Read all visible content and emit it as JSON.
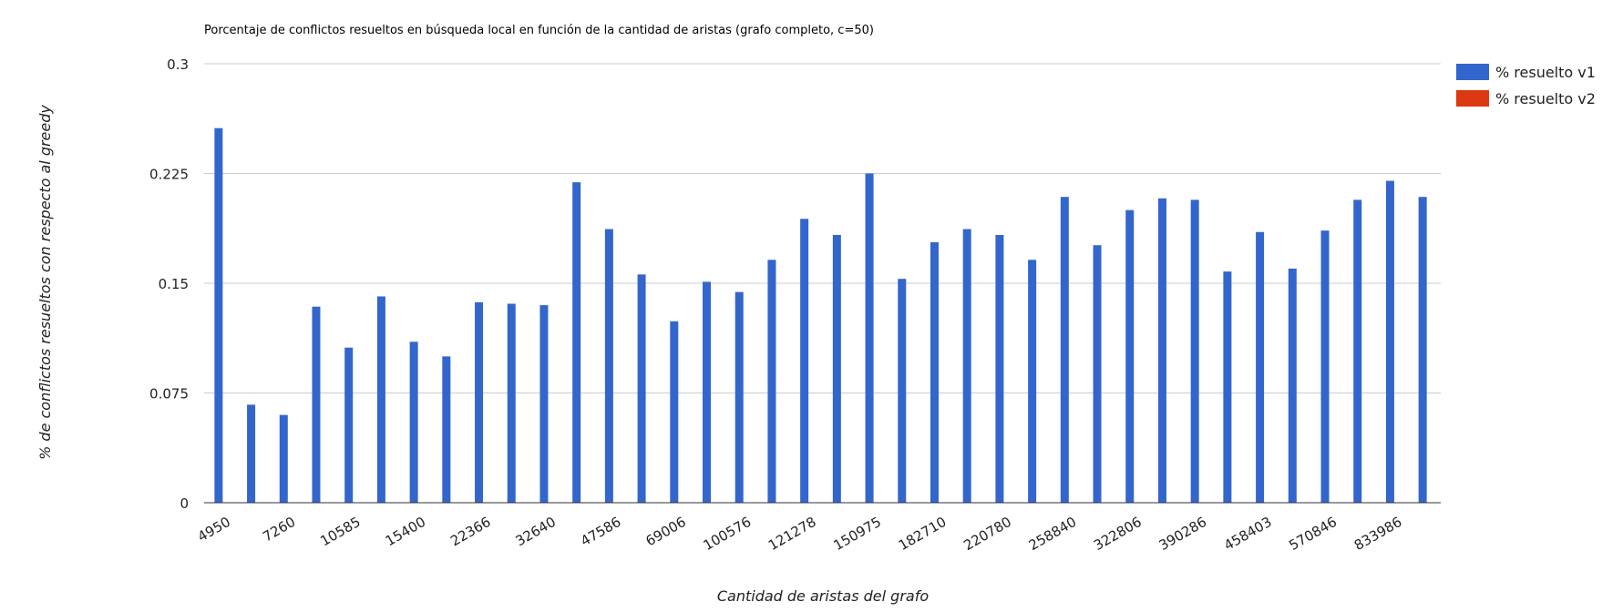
{
  "chart_data": {
    "type": "bar",
    "title": "Porcentaje de conflictos resueltos en búsqueda local en función de la cantidad de aristas (grafo completo, c=50)",
    "xlabel": "Cantidad de aristas del grafo",
    "ylabel": "% de conflictos resueltos con respecto al greedy",
    "ylim": [
      0,
      0.3
    ],
    "yticks": [
      "0",
      "0.075",
      "0.15",
      "0.225",
      "0.3"
    ],
    "grid": true,
    "legend_position": "right",
    "xtick_labels": [
      "4950",
      "7260",
      "10585",
      "15400",
      "22366",
      "32640",
      "47586",
      "69006",
      "100576",
      "121278",
      "150975",
      "182710",
      "220780",
      "258840",
      "322806",
      "390286",
      "458403",
      "570846",
      "833986"
    ],
    "bar_count": 38,
    "series": [
      {
        "name": "% resuelto v1",
        "color": "#3366cc",
        "values": [
          0.256,
          0.067,
          0.06,
          0.134,
          0.106,
          0.141,
          0.11,
          0.1,
          0.137,
          0.136,
          0.135,
          0.219,
          0.187,
          0.156,
          0.124,
          0.151,
          0.144,
          0.166,
          0.194,
          0.183,
          0.225,
          0.153,
          0.178,
          0.187,
          0.183,
          0.166,
          0.209,
          0.176,
          0.2,
          0.208,
          0.207,
          0.158,
          0.185,
          0.16,
          0.186,
          0.207,
          0.22,
          0.209
        ]
      },
      {
        "name": "% resuelto v2",
        "color": "#dc3912",
        "values": []
      }
    ]
  }
}
